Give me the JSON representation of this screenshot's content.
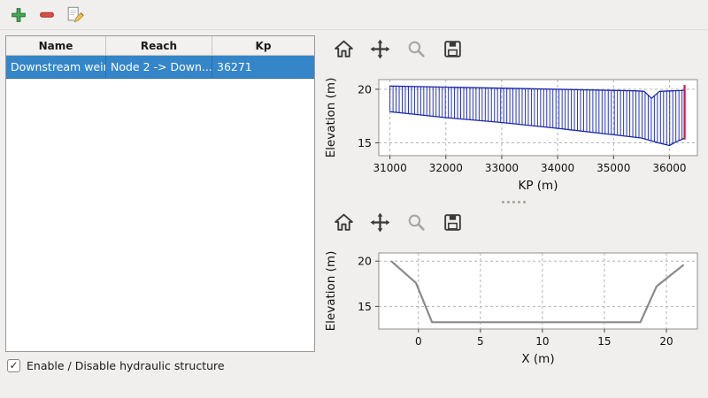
{
  "main_toolbar": {
    "buttons": [
      {
        "label": "add structure"
      },
      {
        "label": "remove structure"
      },
      {
        "label": "edit structure"
      }
    ]
  },
  "table": {
    "columns": [
      "Name",
      "Reach",
      "Kp"
    ],
    "rows": [
      {
        "name": "Downstream weir",
        "reach": "Node 2 -> Down...",
        "kp": "36271",
        "selected": true
      }
    ],
    "selection_color": "#3486c9"
  },
  "checkbox": {
    "label": "Enable / Disable hydraulic structure",
    "checked": true,
    "check_glyph": "✓"
  },
  "figure_toolbar": {
    "buttons": [
      "home",
      "pan",
      "zoom",
      "save"
    ]
  },
  "chart_data": [
    {
      "type": "area",
      "title": "",
      "xlabel": "KP (m)",
      "ylabel": "Elevation (m)",
      "xlim": [
        30800,
        36500
      ],
      "ylim": [
        13.8,
        20.9
      ],
      "xticks": [
        31000,
        32000,
        33000,
        34000,
        35000,
        36000
      ],
      "yticks": [
        15,
        20
      ],
      "grid": true,
      "hatch": {
        "step": 55,
        "color": "#2433c0"
      },
      "series": [
        {
          "name": "channel-top",
          "color": "#1a28a8",
          "width": 1.3,
          "points": [
            [
              31000,
              20.3
            ],
            [
              33000,
              20.1
            ],
            [
              35400,
              19.85
            ],
            [
              35550,
              19.8
            ],
            [
              35680,
              19.15
            ],
            [
              35820,
              19.8
            ],
            [
              36280,
              19.9
            ]
          ]
        },
        {
          "name": "channel-bottom",
          "color": "#1a28a8",
          "width": 1.3,
          "points": [
            [
              31000,
              17.9
            ],
            [
              32000,
              17.35
            ],
            [
              33000,
              16.9
            ],
            [
              34000,
              16.35
            ],
            [
              35000,
              15.75
            ],
            [
              35500,
              15.45
            ],
            [
              35800,
              15.0
            ],
            [
              36000,
              14.75
            ],
            [
              36120,
              15.1
            ],
            [
              36280,
              15.45
            ]
          ]
        }
      ],
      "marker_line": {
        "x": 36271,
        "y0": 15.3,
        "y1": 20.4,
        "color": "#d8174c"
      }
    },
    {
      "type": "line",
      "title": "",
      "xlabel": "X (m)",
      "ylabel": "Elevation (m)",
      "xlim": [
        -3.2,
        22.5
      ],
      "ylim": [
        12.5,
        20.9
      ],
      "xticks": [
        0,
        5,
        10,
        15,
        20
      ],
      "yticks": [
        15,
        20
      ],
      "grid": true,
      "series": [
        {
          "name": "cross-section",
          "color": "#8a8a8a",
          "width": 2.2,
          "points": [
            [
              -2.2,
              20.0
            ],
            [
              -0.2,
              17.6
            ],
            [
              1.1,
              13.25
            ],
            [
              17.9,
              13.25
            ],
            [
              19.2,
              17.2
            ],
            [
              21.4,
              19.6
            ]
          ]
        }
      ]
    }
  ]
}
